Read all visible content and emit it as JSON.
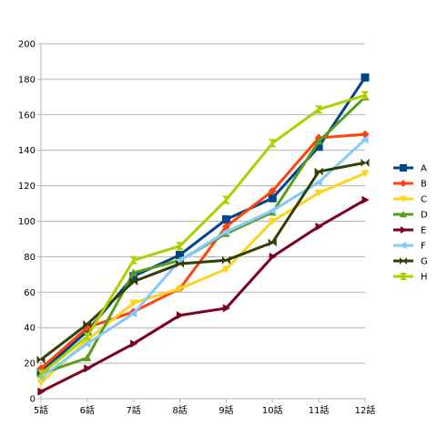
{
  "chart_data": {
    "type": "line",
    "title": "",
    "xlabel": "",
    "ylabel": "",
    "categories": [
      "5話",
      "6話",
      "7話",
      "8話",
      "9話",
      "10話",
      "11話",
      "12話"
    ],
    "ylim": [
      0,
      200
    ],
    "yticks": [
      0,
      20,
      40,
      60,
      80,
      100,
      120,
      140,
      160,
      180,
      200
    ],
    "grid": "horizontal",
    "legend_position": "right",
    "series": [
      {
        "name": "A",
        "color": "#004586",
        "marker": "square",
        "values": [
          15,
          38,
          69,
          81,
          101,
          113,
          142,
          181
        ]
      },
      {
        "name": "B",
        "color": "#ff420e",
        "marker": "diamond",
        "values": [
          17,
          40,
          49,
          62,
          97,
          117,
          147,
          149
        ]
      },
      {
        "name": "C",
        "color": "#ffd320",
        "marker": "triangle-down",
        "values": [
          9,
          33,
          54,
          62,
          73,
          100,
          116,
          127
        ]
      },
      {
        "name": "D",
        "color": "#579d1c",
        "marker": "triangle-up",
        "values": [
          14,
          23,
          71,
          78,
          93,
          105,
          145,
          170
        ]
      },
      {
        "name": "E",
        "color": "#7e0021",
        "marker": "triangle-right",
        "values": [
          4,
          17,
          31,
          47,
          51,
          80,
          97,
          112
        ]
      },
      {
        "name": "F",
        "color": "#83caff",
        "marker": "triangle-left",
        "values": [
          12,
          31,
          48,
          78,
          94,
          106,
          122,
          146
        ]
      },
      {
        "name": "G",
        "color": "#314004",
        "marker": "bowtie",
        "values": [
          22,
          42,
          66,
          76,
          78,
          88,
          128,
          133
        ]
      },
      {
        "name": "H",
        "color": "#aecf00",
        "marker": "hourglass",
        "values": [
          14,
          35,
          78,
          86,
          112,
          144,
          163,
          171
        ]
      }
    ]
  }
}
